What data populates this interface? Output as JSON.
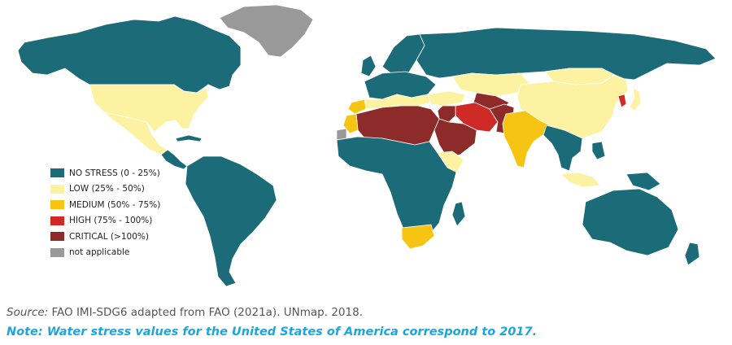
{
  "colors": {
    "no_stress": "#1c6b78",
    "low": "#fcf2a2",
    "medium": "#f6c514",
    "high": "#d02a28",
    "critical": "#8c2b29",
    "not_applicable": "#999999",
    "border": "#ffffff",
    "note": "#1aa6df"
  },
  "legend": [
    {
      "label": "NO STRESS (0 - 25%)",
      "color": "#1c6b78"
    },
    {
      "label": "LOW (25% - 50%)",
      "color": "#fcf2a2"
    },
    {
      "label": "MEDIUM (50% - 75%)",
      "color": "#f6c514"
    },
    {
      "label": "HIGH (75% - 100%)",
      "color": "#d02a28"
    },
    {
      "label": "CRITICAL (>100%)",
      "color": "#8c2b29"
    },
    {
      "label": "not applicable",
      "color": "#999999"
    }
  ],
  "source": {
    "prefix": "Source:",
    "text": " FAO IMI-SDG6 adapted from FAO (2021a).  UNmap. 2018."
  },
  "note": "Note: Water stress values for the United States of America correspond to 2017."
}
